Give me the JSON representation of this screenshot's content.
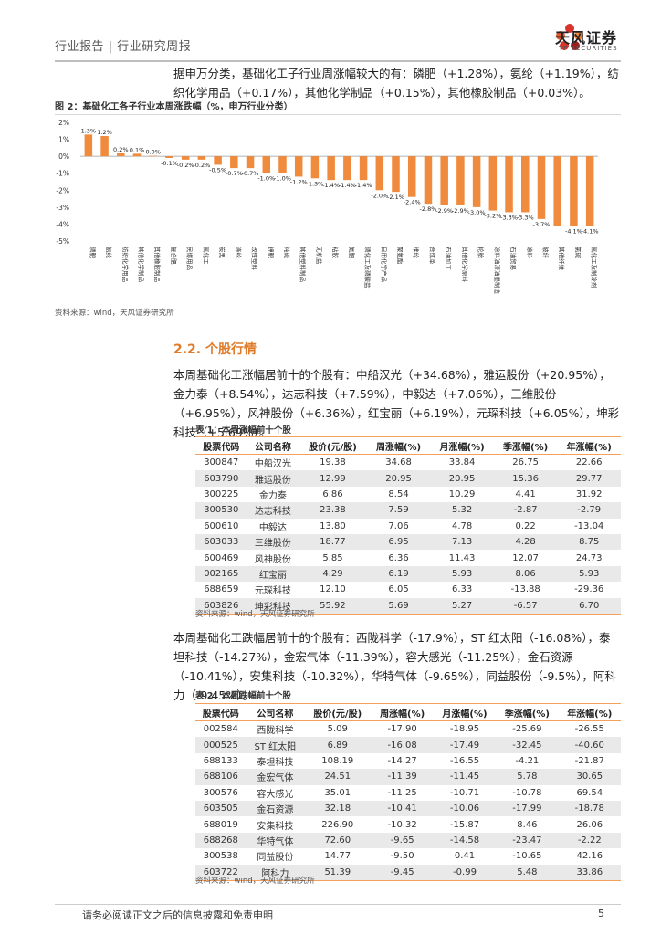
{
  "header": {
    "title": "行业报告 | 行业研究周报",
    "brand": "天风证券",
    "brand_en": "TF SECURITIES",
    "colors": {
      "accent": "#e07b2a",
      "bar": "#f08a3c",
      "logo_red": "#d9342b"
    }
  },
  "intro_paragraph": "据申万分类，基础化工子行业周涨幅较大的有：磷肥（+1.28%），氨纶（+1.19%），纺织化学用品（+0.17%），其他化学制品（+0.15%），其他橡胶制品（+0.03%）。",
  "figure": {
    "title": "图 2：基础化工各子行业本周涨跌幅（%，申万行业分类）",
    "source": "资料来源：wind，天风证券研究所"
  },
  "chart_data": {
    "type": "bar",
    "title": "基础化工各子行业本周涨跌幅（%，申万行业分类）",
    "ylabel": "%",
    "ylim": [
      -5,
      2
    ],
    "yticks": [
      "2%",
      "1%",
      "0%",
      "-1%",
      "-2%",
      "-3%",
      "-4%",
      "-5%"
    ],
    "categories": [
      "磷肥",
      "氨纶",
      "纺织化学用品",
      "其他化学制品",
      "其他橡胶制品",
      "复合肥",
      "民爆用品",
      "氟化工",
      "炭黑",
      "涤纶",
      "改性塑料",
      "钾肥",
      "纯碱",
      "其他塑料制品",
      "无机盐",
      "粘胶",
      "氮肥",
      "磷化工及磷酸盐",
      "日用化学产品",
      "聚氨酯",
      "维纶",
      "合成革",
      "石油加工",
      "其他化学原料",
      "轮胎",
      "涂料油漆油墨制造",
      "石油贸易",
      "涂料",
      "玻纤",
      "其他纤维",
      "氯碱",
      "氟化工及制冷剂"
    ],
    "values": [
      1.28,
      1.19,
      0.17,
      0.15,
      0.03,
      -0.1,
      -0.2,
      -0.2,
      -0.5,
      -0.7,
      -0.7,
      -1.0,
      -1.0,
      -1.2,
      -1.3,
      -1.4,
      -1.4,
      -1.4,
      -2.0,
      -2.1,
      -2.4,
      -2.8,
      -2.9,
      -2.9,
      -3.0,
      -3.2,
      -3.3,
      -3.3,
      -3.7,
      -4.1,
      -4.1,
      -4.1
    ],
    "data_labels": [
      "1.3%",
      "1.2%",
      "0.2%",
      "0.1%",
      "0.0%",
      "-0.1%",
      "-0.2%",
      "-0.2%",
      "-0.5%",
      "-0.7%",
      "-0.7%",
      "-1.0%",
      "-1.0%",
      "-1.2%",
      "-1.3%",
      "-1.4%",
      "-1.4%",
      "-1.4%",
      "-2.0%",
      "-2.1%",
      "-2.4%",
      "-2.8%",
      "-2.9%",
      "-2.9%",
      "-3.0%",
      "-3.2%",
      "-3.3%",
      "-3.3%",
      "-3.7%",
      "-4.1%",
      "-4.1%",
      "-4.1%"
    ],
    "label_shown": [
      true,
      true,
      true,
      true,
      true,
      true,
      true,
      true,
      true,
      true,
      true,
      true,
      true,
      true,
      true,
      true,
      true,
      true,
      true,
      true,
      true,
      true,
      true,
      true,
      true,
      true,
      true,
      true,
      true,
      false,
      true,
      true
    ]
  },
  "section": {
    "title": "2.2. 个股行情",
    "paragraph_up": "本周基础化工涨幅居前十的个股有：中船汉光（+34.68%），雅运股份（+20.95%），金力泰（+8.54%），达志科技（+7.59%），中毅达（+7.06%），三维股份（+6.95%），风神股份（+6.36%），红宝丽（+6.19%），元琛科技（+6.05%），坤彩科技（+5.69%）。",
    "paragraph_down": "本周基础化工跌幅居前十的个股有：西陇科学（-17.9%），ST 红太阳（-16.08%），泰坦科技（-14.27%），金宏气体（-11.39%），容大感光（-11.25%），金石资源（-10.41%），安集科技（-10.32%），华特气体（-9.65%），同益股份（-9.5%），阿科力（-9.45%）。"
  },
  "table_up": {
    "title": "表 1：本周涨幅前十个股",
    "headers": [
      "股票代码",
      "公司名称",
      "股价(元/股)",
      "周涨幅(%)",
      "月涨幅(%)",
      "季涨幅(%)",
      "年涨幅(%)"
    ],
    "rows": [
      [
        "300847",
        "中船汉光",
        "19.38",
        "34.68",
        "33.84",
        "26.75",
        "22.66"
      ],
      [
        "603790",
        "雅运股份",
        "12.99",
        "20.95",
        "20.95",
        "15.36",
        "29.77"
      ],
      [
        "300225",
        "金力泰",
        "6.86",
        "8.54",
        "10.29",
        "4.41",
        "31.92"
      ],
      [
        "300530",
        "达志科技",
        "23.38",
        "7.59",
        "5.32",
        "-2.87",
        "-2.79"
      ],
      [
        "600610",
        "中毅达",
        "13.80",
        "7.06",
        "4.78",
        "0.22",
        "-13.04"
      ],
      [
        "603033",
        "三维股份",
        "18.77",
        "6.95",
        "7.13",
        "4.28",
        "8.75"
      ],
      [
        "600469",
        "风神股份",
        "5.85",
        "6.36",
        "11.43",
        "12.07",
        "24.73"
      ],
      [
        "002165",
        "红宝丽",
        "4.29",
        "6.19",
        "5.93",
        "8.06",
        "5.93"
      ],
      [
        "688659",
        "元琛科技",
        "12.10",
        "6.05",
        "6.33",
        "-13.88",
        "-29.36"
      ],
      [
        "603826",
        "坤彩科技",
        "55.92",
        "5.69",
        "5.27",
        "-6.57",
        "6.70"
      ]
    ],
    "source": "资料来源：wind，天风证券研究所"
  },
  "table_down": {
    "title": "表 2：本周跌幅前十个股",
    "headers": [
      "股票代码",
      "公司名称",
      "股价(元/股)",
      "周涨幅(%)",
      "月涨幅(%)",
      "季涨幅(%)",
      "年涨幅(%)"
    ],
    "rows": [
      [
        "002584",
        "西陇科学",
        "5.09",
        "-17.90",
        "-18.95",
        "-25.69",
        "-26.55"
      ],
      [
        "000525",
        "ST 红太阳",
        "6.89",
        "-16.08",
        "-17.49",
        "-32.45",
        "-40.60"
      ],
      [
        "688133",
        "泰坦科技",
        "108.19",
        "-14.27",
        "-16.55",
        "-4.21",
        "-21.87"
      ],
      [
        "688106",
        "金宏气体",
        "24.51",
        "-11.39",
        "-11.45",
        "5.78",
        "30.65"
      ],
      [
        "300576",
        "容大感光",
        "35.01",
        "-11.25",
        "-10.71",
        "-10.78",
        "69.54"
      ],
      [
        "603505",
        "金石资源",
        "32.18",
        "-10.41",
        "-10.06",
        "-17.99",
        "-18.78"
      ],
      [
        "688019",
        "安集科技",
        "226.90",
        "-10.32",
        "-15.87",
        "8.46",
        "26.06"
      ],
      [
        "688268",
        "华特气体",
        "72.60",
        "-9.65",
        "-14.58",
        "-23.47",
        "-2.22"
      ],
      [
        "300538",
        "同益股份",
        "14.77",
        "-9.50",
        "0.41",
        "-10.65",
        "42.16"
      ],
      [
        "603722",
        "阿科力",
        "51.39",
        "-9.45",
        "-0.99",
        "5.48",
        "33.86"
      ]
    ],
    "source": "资料来源：wind，天风证券研究所"
  },
  "footer": {
    "disclaimer": "请务必阅读正文之后的信息披露和免责申明",
    "page_number": "5"
  }
}
